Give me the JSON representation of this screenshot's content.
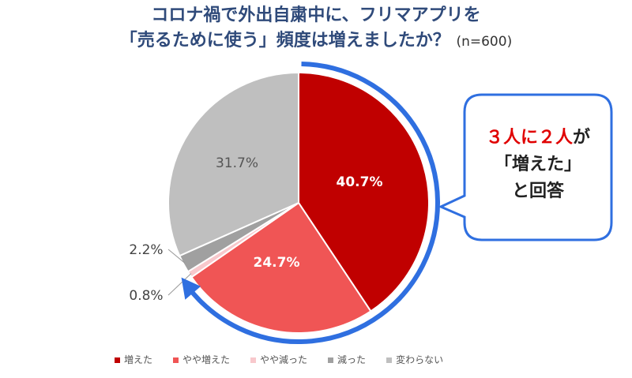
{
  "title": {
    "line1": "コロナ禍で外出自粛中に、フリマアプリを",
    "line2": "「売るために使う」頻度は増えましたか？",
    "n": "(n=600)"
  },
  "callout": {
    "highlight": "３人に２人",
    "suffix": "が",
    "line2": "「増えた」",
    "line3": "と回答"
  },
  "colors": {
    "accent": "#2f6fe0",
    "title": "#2f4a7a"
  },
  "chart_data": {
    "type": "pie",
    "start": "top",
    "direction": "clockwise",
    "slices": [
      {
        "name": "増えた",
        "value": 40.7,
        "label": "40.7%",
        "color": "#c00000"
      },
      {
        "name": "やや増えた",
        "value": 24.7,
        "label": "24.7%",
        "color": "#f05555"
      },
      {
        "name": "やや減った",
        "value": 0.8,
        "label": "0.8%",
        "color": "#f8c8cc"
      },
      {
        "name": "減った",
        "value": 2.2,
        "label": "2.2%",
        "color": "#a0a0a0"
      },
      {
        "name": "変わらない",
        "value": 31.7,
        "label": "31.7%",
        "color": "#bfbfbf"
      }
    ],
    "legend": "bottom"
  }
}
